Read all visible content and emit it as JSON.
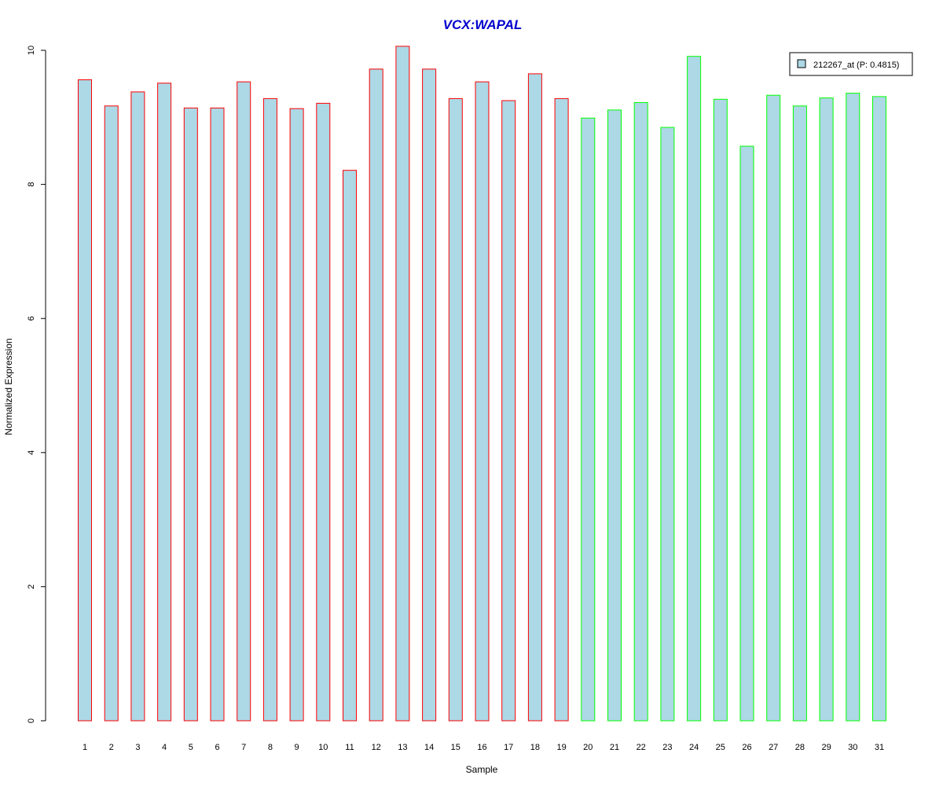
{
  "chart_data": {
    "type": "bar",
    "title": "VCX:WAPAL",
    "xlabel": "Sample",
    "ylabel": "Normalized Expression",
    "ylim": [
      0,
      10
    ],
    "yticks": [
      "0",
      "2",
      "4",
      "6",
      "8",
      "10"
    ],
    "categories": [
      "1",
      "2",
      "3",
      "4",
      "5",
      "6",
      "7",
      "8",
      "9",
      "10",
      "11",
      "12",
      "13",
      "14",
      "15",
      "16",
      "17",
      "18",
      "19",
      "20",
      "21",
      "22",
      "23",
      "24",
      "25",
      "26",
      "27",
      "28",
      "29",
      "30",
      "31"
    ],
    "series": [
      {
        "name": "212267_at (P: 0.4815)",
        "values": [
          9.56,
          9.17,
          9.38,
          9.51,
          9.14,
          9.14,
          9.53,
          9.28,
          9.13,
          9.21,
          8.21,
          9.72,
          10.06,
          9.72,
          9.28,
          9.53,
          9.25,
          9.65,
          9.28,
          8.99,
          9.11,
          9.22,
          8.85,
          9.91,
          9.27,
          8.57,
          9.33,
          9.17,
          9.29,
          9.36,
          9.31
        ],
        "groups": [
          "red",
          "red",
          "red",
          "red",
          "red",
          "red",
          "red",
          "red",
          "red",
          "red",
          "red",
          "red",
          "red",
          "red",
          "red",
          "red",
          "red",
          "red",
          "red",
          "green",
          "green",
          "green",
          "green",
          "green",
          "green",
          "green",
          "green",
          "green",
          "green",
          "green",
          "green"
        ]
      }
    ],
    "legend_position": "top-right",
    "grid": false,
    "colors": {
      "bar_fill": "#ADD8E6",
      "group_red": "#FF0000",
      "group_green": "#00FF00",
      "title": "#0000CD"
    }
  }
}
